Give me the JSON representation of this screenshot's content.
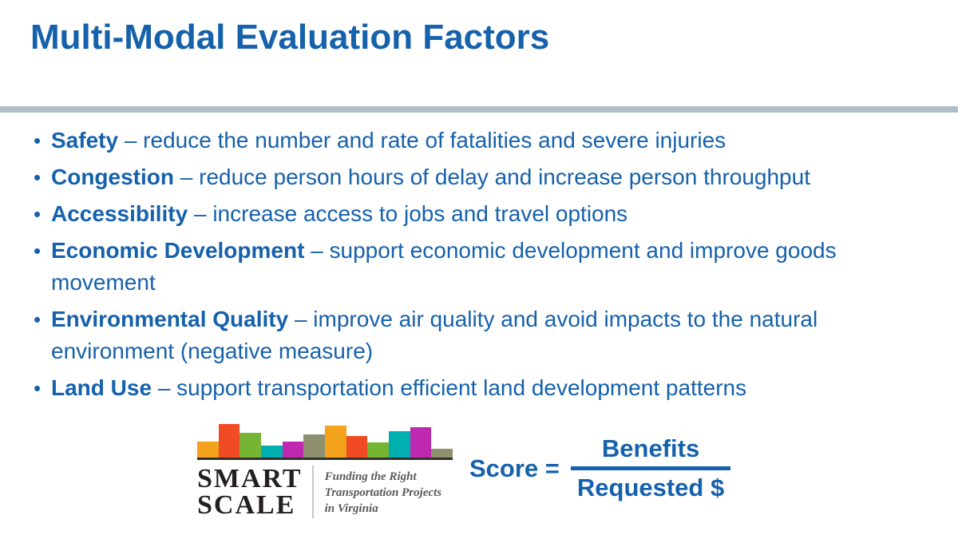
{
  "title": "Multi-Modal Evaluation Factors",
  "bullets": [
    {
      "term": "Safety",
      "desc": "– reduce the number and rate of fatalities and severe injuries"
    },
    {
      "term": "Congestion",
      "desc": "– reduce person hours of delay and increase person throughput"
    },
    {
      "term": "Accessibility",
      "desc": "– increase access to jobs and travel options"
    },
    {
      "term": "Economic Development",
      "desc": "– support economic development and improve goods movement"
    },
    {
      "term": "Environmental Quality",
      "desc": "– improve air quality and avoid impacts to the natural environment (negative measure)"
    },
    {
      "term": "Land Use",
      "desc": "– support transportation efficient land development patterns"
    }
  ],
  "formula": {
    "lhs": "Score =",
    "numerator": "Benefits",
    "denominator": "Requested $"
  },
  "logo": {
    "wordmark_line1": "SMART",
    "wordmark_line2": "SCALE",
    "tagline": [
      "Funding the Right",
      "Transportation Projects",
      "in Virginia"
    ],
    "bars": [
      {
        "color": "#F2A21C",
        "h": 20
      },
      {
        "color": "#F04B23",
        "h": 42
      },
      {
        "color": "#76B433",
        "h": 31
      },
      {
        "color": "#00B0B0",
        "h": 15
      },
      {
        "color": "#BF28B0",
        "h": 20
      },
      {
        "color": "#8E9070",
        "h": 29
      },
      {
        "color": "#F2A21C",
        "h": 40
      },
      {
        "color": "#F04B23",
        "h": 27
      },
      {
        "color": "#76B433",
        "h": 19
      },
      {
        "color": "#00B0B0",
        "h": 33
      },
      {
        "color": "#BF28B0",
        "h": 38
      },
      {
        "color": "#8E9070",
        "h": 11
      }
    ]
  },
  "colors": {
    "text_blue": "#1561AC",
    "divider": "#AEBFCB",
    "wordmark": "#231F20",
    "tagline_gray": "#58595B",
    "baseline": "#33302B"
  }
}
